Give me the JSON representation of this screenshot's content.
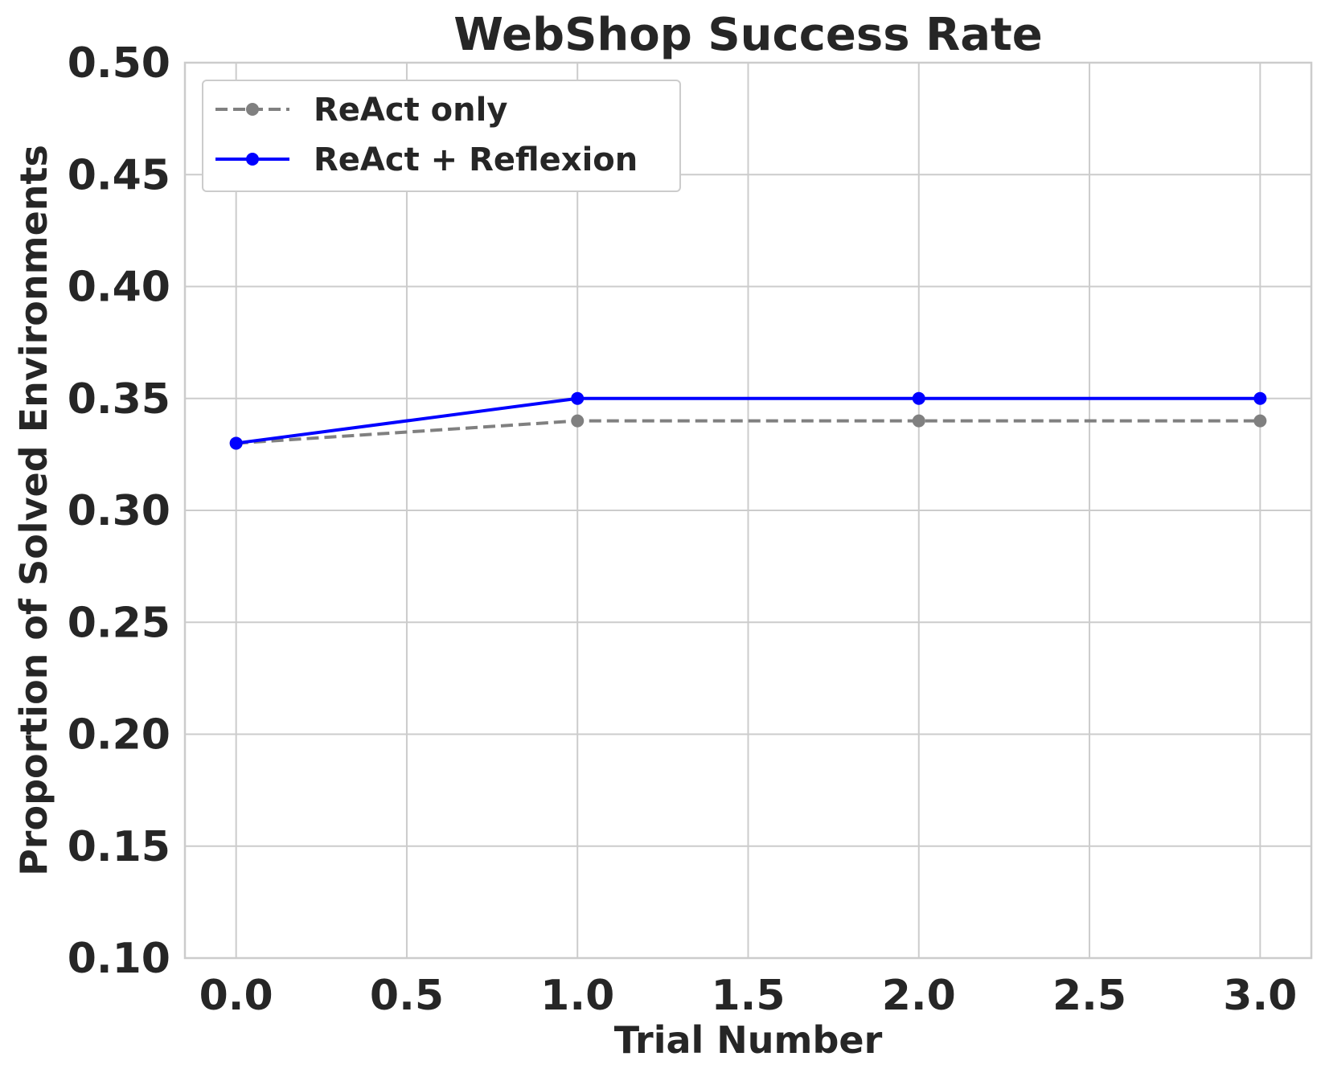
{
  "chart_data": {
    "type": "line",
    "title": "WebShop Success Rate",
    "xlabel": "Trial Number",
    "ylabel": "Proportion of Solved Environments",
    "xlim": [
      -0.15,
      3.15
    ],
    "ylim": [
      0.1,
      0.5
    ],
    "x_ticks": [
      "0.0",
      "0.5",
      "1.0",
      "1.5",
      "2.0",
      "2.5",
      "3.0"
    ],
    "y_ticks": [
      "0.10",
      "0.15",
      "0.20",
      "0.25",
      "0.30",
      "0.35",
      "0.40",
      "0.45",
      "0.50"
    ],
    "grid": true,
    "legend_position": "top-left",
    "series": [
      {
        "name": "ReAct only",
        "x": [
          0,
          1,
          2,
          3
        ],
        "values": [
          0.33,
          0.34,
          0.34,
          0.34
        ],
        "color": "#808080",
        "linestyle": "dashed",
        "marker": "circle"
      },
      {
        "name": "ReAct + Reflexion",
        "x": [
          0,
          1,
          2,
          3
        ],
        "values": [
          0.33,
          0.35,
          0.35,
          0.35
        ],
        "color": "#0000ff",
        "linestyle": "solid",
        "marker": "circle"
      }
    ]
  }
}
